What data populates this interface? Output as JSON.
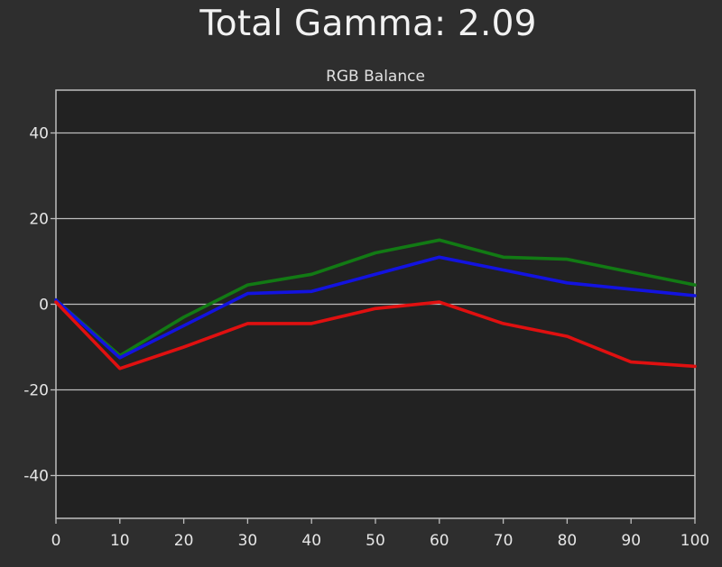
{
  "chart_data": {
    "type": "line",
    "title": "Total Gamma: 2.09",
    "subtitle": "RGB Balance",
    "xlabel": "",
    "ylabel": "",
    "xlim": [
      0,
      100
    ],
    "ylim": [
      -50,
      50
    ],
    "x_ticks": [
      0,
      10,
      20,
      30,
      40,
      50,
      60,
      70,
      80,
      90,
      100
    ],
    "y_ticks": [
      40,
      20,
      0,
      -20,
      -40
    ],
    "y_tick_labels": [
      "40",
      "20",
      "0",
      "-20",
      "-40"
    ],
    "grid": true,
    "x": [
      0,
      10,
      20,
      30,
      40,
      50,
      60,
      70,
      80,
      90,
      100
    ],
    "series": [
      {
        "color": "#127a14",
        "values": [
          1,
          -12,
          -3,
          4.5,
          7,
          12,
          15,
          11,
          10.5,
          7.5,
          4.5
        ]
      },
      {
        "color": "#1313e0",
        "values": [
          1,
          -12.5,
          -5,
          2.5,
          3,
          7,
          11,
          8,
          5,
          3.5,
          2
        ]
      },
      {
        "color": "#e01010",
        "values": [
          0.5,
          -15,
          -10,
          -4.5,
          -4.5,
          -1,
          0.5,
          -4.5,
          -7.5,
          -13.5,
          -14.5
        ]
      }
    ]
  }
}
